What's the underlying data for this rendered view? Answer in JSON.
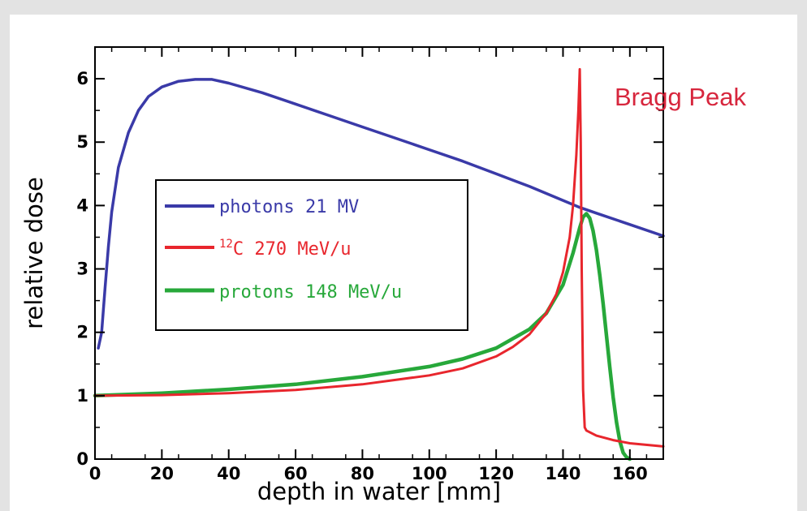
{
  "chart_data": {
    "type": "line",
    "xlabel": "depth in water [mm]",
    "ylabel": "relative dose",
    "xlim": [
      0,
      170
    ],
    "ylim": [
      0,
      6.5
    ],
    "xticks": [
      0,
      20,
      40,
      60,
      80,
      100,
      120,
      140,
      160
    ],
    "yticks": [
      0,
      1,
      2,
      3,
      4,
      5,
      6
    ],
    "grid": false,
    "legend_position": "left-middle",
    "annotation": {
      "text": "Bragg Peak",
      "color": "#d7263d"
    },
    "series": [
      {
        "name": "photons 21 MV",
        "label_main": "photons 21 MV",
        "color": "#3a3aa8",
        "x": [
          1,
          2,
          3,
          4,
          5,
          7,
          10,
          13,
          16,
          20,
          25,
          30,
          35,
          40,
          50,
          60,
          70,
          80,
          90,
          100,
          110,
          120,
          130,
          140,
          145,
          150,
          160,
          170
        ],
        "y": [
          1.75,
          2.0,
          2.7,
          3.35,
          3.9,
          4.6,
          5.15,
          5.5,
          5.72,
          5.87,
          5.96,
          5.99,
          5.99,
          5.93,
          5.78,
          5.6,
          5.42,
          5.24,
          5.06,
          4.88,
          4.7,
          4.5,
          4.3,
          4.08,
          3.97,
          3.88,
          3.7,
          3.52
        ]
      },
      {
        "name": "12C 270 MeV/u",
        "label_sup": "12",
        "label_main": "C  270  MeV/u",
        "color": "#e8262d",
        "x": [
          0,
          20,
          40,
          60,
          80,
          100,
          110,
          120,
          125,
          130,
          135,
          138,
          140,
          142,
          143,
          144,
          144.6,
          145,
          145.3,
          145.6,
          146,
          146.5,
          147,
          150,
          155,
          160,
          170
        ],
        "y": [
          1.0,
          1.01,
          1.04,
          1.09,
          1.18,
          1.32,
          1.43,
          1.62,
          1.77,
          1.97,
          2.3,
          2.6,
          2.95,
          3.5,
          4.0,
          4.8,
          5.5,
          6.15,
          5.0,
          3.0,
          1.1,
          0.5,
          0.45,
          0.37,
          0.3,
          0.25,
          0.2
        ]
      },
      {
        "name": "protons 148 MeV/u",
        "label_main": "protons  148  MeV/u",
        "color": "#27a83a",
        "x": [
          0,
          20,
          40,
          60,
          80,
          100,
          110,
          120,
          130,
          135,
          140,
          143,
          145,
          146,
          147,
          148,
          149,
          150,
          151,
          152,
          153,
          154,
          155,
          156,
          157,
          158,
          159,
          160
        ],
        "y": [
          1.0,
          1.04,
          1.1,
          1.18,
          1.3,
          1.46,
          1.58,
          1.75,
          2.05,
          2.3,
          2.75,
          3.25,
          3.65,
          3.82,
          3.87,
          3.8,
          3.6,
          3.3,
          2.9,
          2.45,
          1.95,
          1.45,
          0.98,
          0.58,
          0.28,
          0.1,
          0.03,
          0.0
        ]
      }
    ]
  }
}
